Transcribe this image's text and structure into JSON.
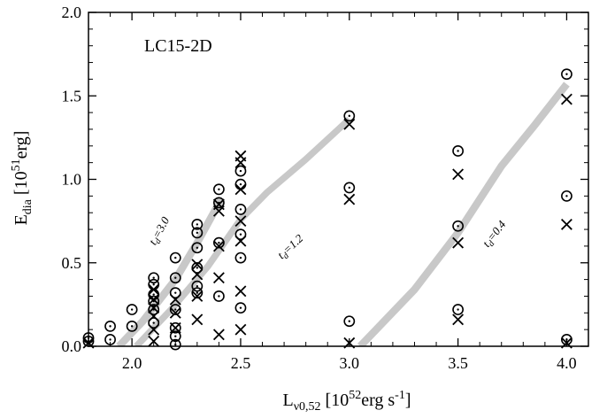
{
  "chart_data": {
    "type": "scatter",
    "title": "LC15-2D",
    "xlabel": {
      "main": "L",
      "sub": "ν0,52",
      "rest": " [10",
      "sup": "52",
      "tail": "erg s",
      "sup2": "-1",
      "close": "]"
    },
    "ylabel": {
      "main": "E",
      "sub": "dia",
      "rest": " [10",
      "sup": "51",
      "tail": "erg]"
    },
    "xlim": [
      1.8,
      4.1
    ],
    "ylim": [
      0.0,
      2.0
    ],
    "x_ticks": [
      2.0,
      2.5,
      3.0,
      3.5,
      4.0
    ],
    "x_tick_labels": [
      "2.0",
      "2.5",
      "3.0",
      "3.5",
      "4.0"
    ],
    "y_ticks": [
      0.0,
      0.5,
      1.0,
      1.5,
      2.0
    ],
    "y_tick_labels": [
      "0.0",
      "0.5",
      "1.0",
      "1.5",
      "2.0"
    ],
    "grid": false,
    "series": [
      {
        "marker": "circle-dot",
        "points": [
          [
            1.8,
            0.03
          ],
          [
            1.8,
            0.05
          ],
          [
            1.9,
            0.12
          ],
          [
            1.9,
            0.04
          ],
          [
            2.0,
            0.22
          ],
          [
            2.0,
            0.12
          ],
          [
            2.1,
            0.41
          ],
          [
            2.1,
            0.37
          ],
          [
            2.1,
            0.31
          ],
          [
            2.1,
            0.27
          ],
          [
            2.1,
            0.22
          ],
          [
            2.1,
            0.14
          ],
          [
            2.2,
            0.53
          ],
          [
            2.2,
            0.41
          ],
          [
            2.2,
            0.32
          ],
          [
            2.2,
            0.22
          ],
          [
            2.2,
            0.11
          ],
          [
            2.2,
            0.06
          ],
          [
            2.2,
            0.01
          ],
          [
            2.3,
            0.73
          ],
          [
            2.3,
            0.68
          ],
          [
            2.3,
            0.59
          ],
          [
            2.3,
            0.47
          ],
          [
            2.3,
            0.36
          ],
          [
            2.3,
            0.32
          ],
          [
            2.4,
            0.94
          ],
          [
            2.4,
            0.86
          ],
          [
            2.4,
            0.62
          ],
          [
            2.4,
            0.3
          ],
          [
            2.5,
            1.05
          ],
          [
            2.5,
            0.97
          ],
          [
            2.5,
            0.82
          ],
          [
            2.5,
            0.67
          ],
          [
            2.5,
            0.53
          ],
          [
            2.5,
            0.23
          ],
          [
            3.0,
            1.38
          ],
          [
            3.0,
            0.95
          ],
          [
            3.0,
            0.15
          ],
          [
            3.5,
            1.17
          ],
          [
            3.5,
            0.72
          ],
          [
            3.5,
            0.22
          ],
          [
            4.0,
            1.63
          ],
          [
            4.0,
            0.9
          ],
          [
            4.0,
            0.04
          ]
        ]
      },
      {
        "marker": "cross",
        "points": [
          [
            1.8,
            0.02
          ],
          [
            2.1,
            0.34
          ],
          [
            2.1,
            0.28
          ],
          [
            2.1,
            0.23
          ],
          [
            2.1,
            0.18
          ],
          [
            2.1,
            0.1
          ],
          [
            2.1,
            0.03
          ],
          [
            2.2,
            0.28
          ],
          [
            2.2,
            0.2
          ],
          [
            2.2,
            0.11
          ],
          [
            2.3,
            0.49
          ],
          [
            2.3,
            0.43
          ],
          [
            2.3,
            0.3
          ],
          [
            2.3,
            0.16
          ],
          [
            2.4,
            0.85
          ],
          [
            2.4,
            0.81
          ],
          [
            2.4,
            0.6
          ],
          [
            2.4,
            0.41
          ],
          [
            2.4,
            0.07
          ],
          [
            2.5,
            1.14
          ],
          [
            2.5,
            1.1
          ],
          [
            2.5,
            0.94
          ],
          [
            2.5,
            0.75
          ],
          [
            2.5,
            0.63
          ],
          [
            2.5,
            0.33
          ],
          [
            2.5,
            0.1
          ],
          [
            3.0,
            1.33
          ],
          [
            3.0,
            0.88
          ],
          [
            3.0,
            0.02
          ],
          [
            3.5,
            1.03
          ],
          [
            3.5,
            0.62
          ],
          [
            3.5,
            0.16
          ],
          [
            4.0,
            1.48
          ],
          [
            4.0,
            0.73
          ],
          [
            4.0,
            0.02
          ]
        ]
      }
    ],
    "bands": [
      {
        "label": "t_d=3.0",
        "label_main": "t",
        "label_sub": "d",
        "label_rest": "=3.0",
        "label_at": [
          2.14,
          0.68
        ],
        "centerline": [
          [
            1.94,
            0.0
          ],
          [
            2.05,
            0.15
          ],
          [
            2.2,
            0.4
          ],
          [
            2.3,
            0.62
          ],
          [
            2.41,
            0.88
          ]
        ],
        "width": 0.045
      },
      {
        "label": "t_d=1.2",
        "label_main": "t",
        "label_sub": "d",
        "label_rest": "=1.2",
        "label_at": [
          2.74,
          0.58
        ],
        "centerline": [
          [
            2.02,
            0.0
          ],
          [
            2.18,
            0.22
          ],
          [
            2.35,
            0.48
          ],
          [
            2.5,
            0.76
          ],
          [
            2.62,
            0.92
          ],
          [
            2.8,
            1.12
          ],
          [
            3.0,
            1.36
          ]
        ],
        "width": 0.04
      },
      {
        "label": "t_d=0.4",
        "label_main": "t",
        "label_sub": "d",
        "label_rest": "=0.4",
        "label_at": [
          3.68,
          0.66
        ],
        "centerline": [
          [
            3.05,
            0.0
          ],
          [
            3.3,
            0.34
          ],
          [
            3.5,
            0.68
          ],
          [
            3.7,
            1.08
          ],
          [
            3.85,
            1.32
          ],
          [
            4.0,
            1.57
          ]
        ],
        "width": 0.045
      }
    ]
  },
  "colors": {
    "band": "#c8c8c8",
    "ink": "#000000"
  }
}
